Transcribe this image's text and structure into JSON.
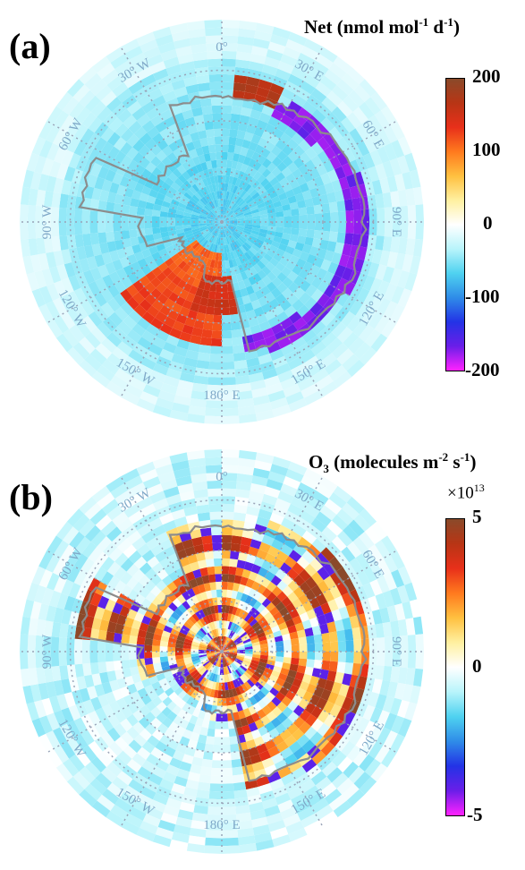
{
  "panels": [
    {
      "label": "(a)",
      "title_main": "Net (nmol mol",
      "title_sup1": "-1",
      "title_mid": " d",
      "title_sup2": "-1",
      "title_end": ")",
      "colorbar": {
        "ticks": [
          "200",
          "100",
          "0",
          "-100",
          "-200"
        ],
        "min": -200,
        "max": 200
      },
      "field": "net"
    },
    {
      "label": "(b)",
      "title_pre": "O",
      "title_sub": "3",
      "title_main": " (molecules m",
      "title_sup1": "-2",
      "title_mid": " s",
      "title_sup2": "-1",
      "title_end": ")",
      "multiplier_base": "×10",
      "multiplier_exp": "13",
      "colorbar": {
        "ticks": [
          "5",
          "0",
          "-5"
        ],
        "min": -5,
        "max": 5
      },
      "field": "o3"
    }
  ],
  "longitude_labels": [
    "0°",
    "30° E",
    "60° E",
    "90° E",
    "120° E",
    "150° E",
    "180° E",
    "150° W",
    "120° W",
    "90° W",
    "60° W",
    "30° W"
  ],
  "colormap": [
    "#ff22ff",
    "#6a1ee8",
    "#2333e6",
    "#2f8ce8",
    "#4fd2f0",
    "#b8f4fb",
    "#ffffff",
    "#fff0a0",
    "#ffc040",
    "#ff7a1e",
    "#e8301a",
    "#b83515",
    "#8a4a2a"
  ]
}
